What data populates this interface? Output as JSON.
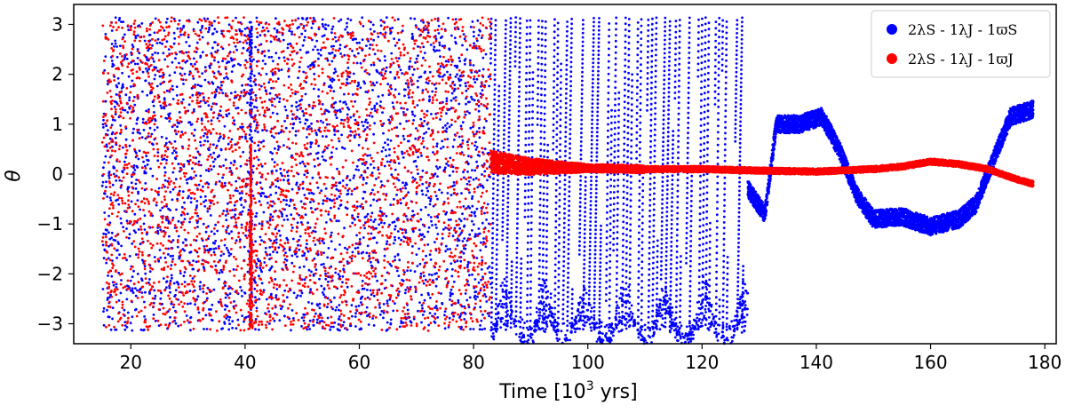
{
  "chart_data": {
    "type": "scatter",
    "title": "",
    "xlabel": "Time [10³ yrs]",
    "ylabel": "θ",
    "xlim": [
      10,
      182
    ],
    "ylim": [
      -3.4,
      3.4
    ],
    "xticks": [
      20,
      40,
      60,
      80,
      100,
      120,
      140,
      160,
      180
    ],
    "yticks": [
      -3,
      -2,
      -1,
      0,
      1,
      2,
      3
    ],
    "grid": false,
    "legend_position": "top-right",
    "series": [
      {
        "name": "2λS - 1λJ - 1ϖS",
        "color": "#0000ff",
        "segments": [
          {
            "x_range": [
              15,
              83
            ],
            "behavior": "circulating",
            "y_range": [
              -3.14,
              3.14
            ]
          },
          {
            "x_range": [
              83,
              128
            ],
            "behavior": "intermittent",
            "y_range": [
              -3.14,
              3.14
            ]
          },
          {
            "x_range": [
              128,
              178
            ],
            "behavior": "librating",
            "trend_x": [
              128,
              131,
              133,
              137,
              141,
              144,
              147,
              150,
              155,
              160,
              165,
              168,
              171,
              174,
              178
            ],
            "trend_y": [
              -0.3,
              -0.8,
              1.0,
              1.0,
              1.15,
              0.5,
              -0.4,
              -0.9,
              -0.85,
              -1.05,
              -0.9,
              -0.6,
              0.3,
              1.15,
              1.3
            ]
          }
        ]
      },
      {
        "name": "2λS - 1λJ - 1ϖJ",
        "color": "#ff0000",
        "segments": [
          {
            "x_range": [
              15,
              83
            ],
            "behavior": "circulating",
            "y_range": [
              -3.14,
              3.14
            ]
          },
          {
            "x_range": [
              83,
              178
            ],
            "behavior": "librating",
            "trend_x": [
              83,
              90,
              100,
              110,
              120,
              130,
              140,
              150,
              155,
              160,
              165,
              170,
              175,
              178
            ],
            "trend_y": [
              0.25,
              0.15,
              0.12,
              0.1,
              0.1,
              0.07,
              0.05,
              0.1,
              0.15,
              0.25,
              0.2,
              0.1,
              -0.1,
              -0.2
            ]
          }
        ]
      }
    ]
  }
}
